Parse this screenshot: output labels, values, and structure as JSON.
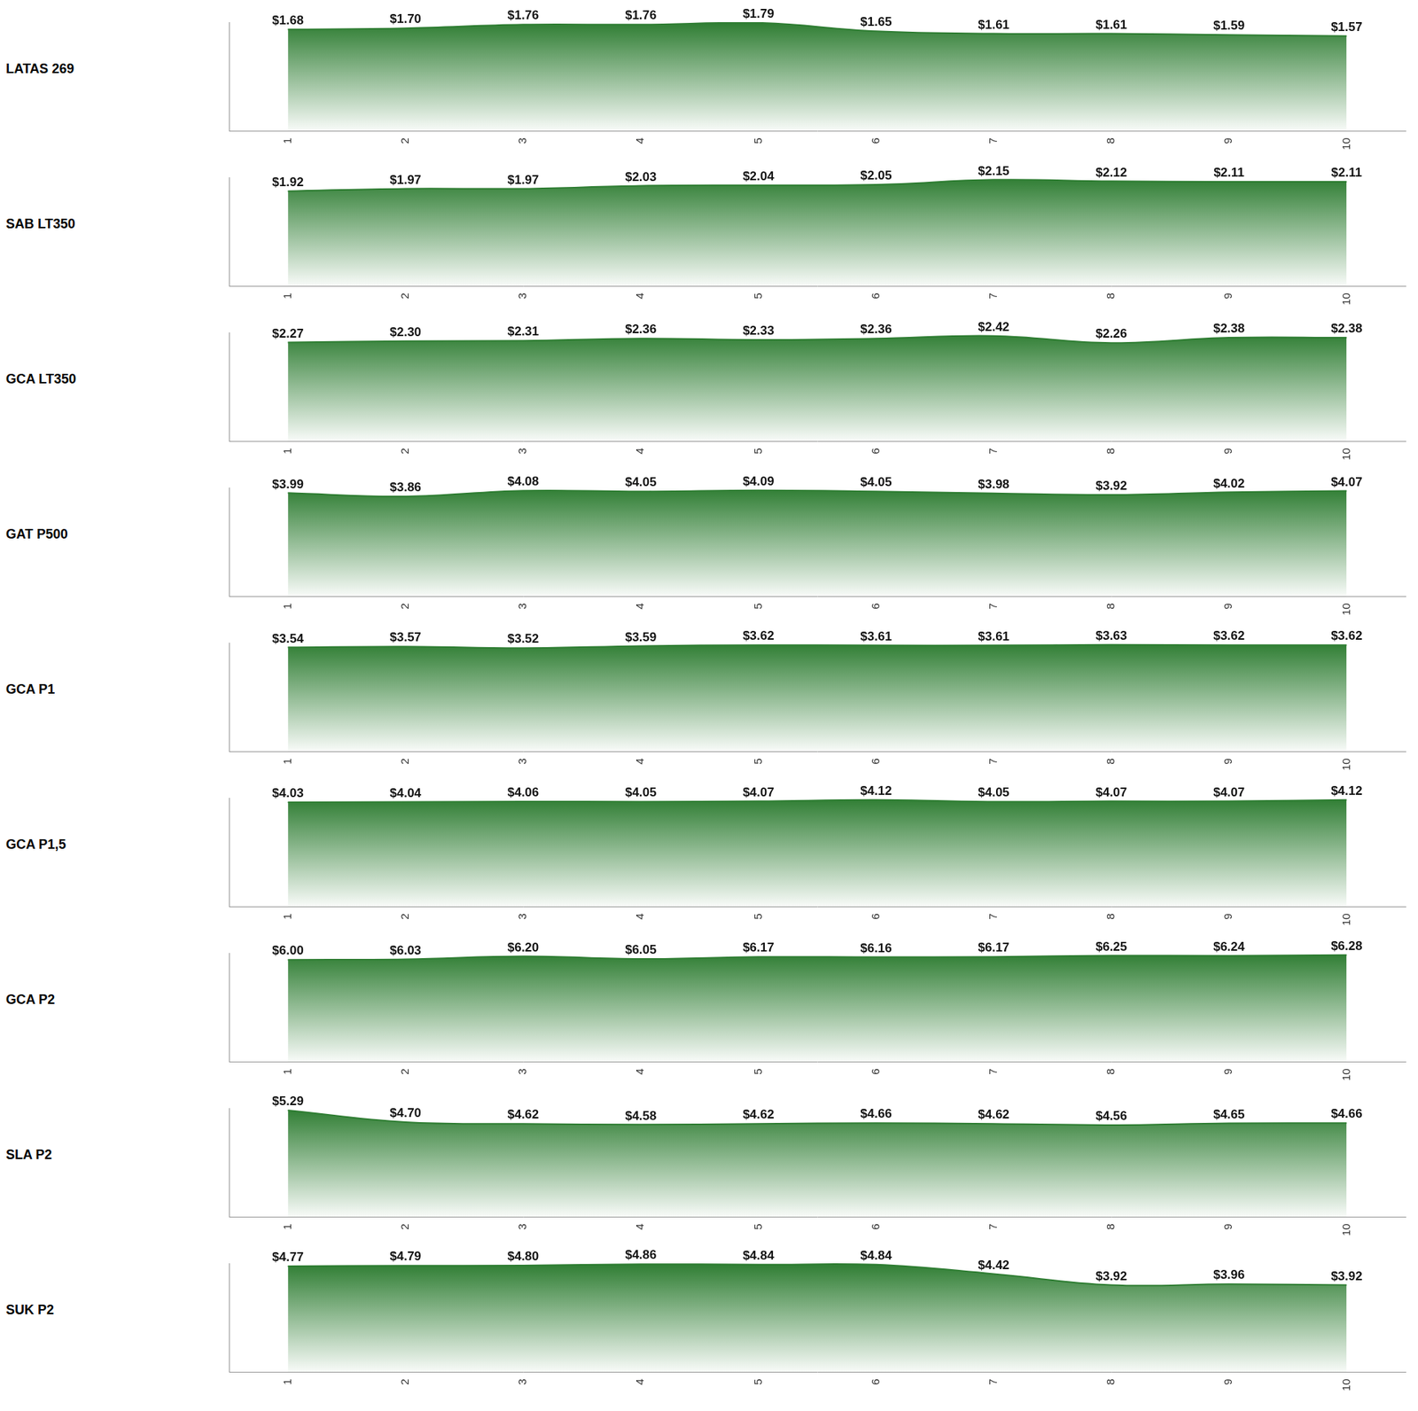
{
  "chart_data": [
    {
      "type": "area",
      "title": "LATAS 269",
      "x": [
        1,
        2,
        3,
        4,
        5,
        6,
        7,
        8,
        9,
        10
      ],
      "xlim": [
        0.5,
        10.5
      ],
      "xticks": [
        1,
        2,
        3,
        4,
        5,
        6,
        7,
        8,
        9,
        10
      ],
      "ylim": [
        0,
        1.8
      ],
      "tick_labels": "x",
      "grid": false,
      "color": "#2e7d32",
      "data_labels": true,
      "values": [
        1.68,
        1.7,
        1.76,
        1.76,
        1.79,
        1.65,
        1.61,
        1.61,
        1.59,
        1.57
      ],
      "value_labels": [
        "$1.68",
        "$1.70",
        "$1.76",
        "$1.76",
        "$1.79",
        "$1.65",
        "$1.61",
        "$1.61",
        "$1.59",
        "$1.57"
      ]
    },
    {
      "type": "area",
      "title": "SAB LT350",
      "x": [
        1,
        2,
        3,
        4,
        5,
        6,
        7,
        8,
        9,
        10
      ],
      "xlim": [
        0.5,
        10.5
      ],
      "xticks": [
        1,
        2,
        3,
        4,
        5,
        6,
        7,
        8,
        9,
        10
      ],
      "ylim": [
        0,
        2.2
      ],
      "tick_labels": "x",
      "grid": false,
      "color": "#2e7d32",
      "data_labels": true,
      "values": [
        1.92,
        1.97,
        1.97,
        2.03,
        2.04,
        2.05,
        2.15,
        2.12,
        2.11,
        2.11
      ],
      "value_labels": [
        "$1.92",
        "$1.97",
        "$1.97",
        "$2.03",
        "$2.04",
        "$2.05",
        "$2.15",
        "$2.12",
        "$2.11",
        "$2.11"
      ]
    },
    {
      "type": "area",
      "title": "GCA LT350",
      "x": [
        1,
        2,
        3,
        4,
        5,
        6,
        7,
        8,
        9,
        10
      ],
      "xlim": [
        0.5,
        10.5
      ],
      "xticks": [
        1,
        2,
        3,
        4,
        5,
        6,
        7,
        8,
        9,
        10
      ],
      "ylim": [
        0,
        2.5
      ],
      "tick_labels": "x",
      "grid": false,
      "color": "#2e7d32",
      "data_labels": true,
      "values": [
        2.27,
        2.3,
        2.31,
        2.36,
        2.33,
        2.36,
        2.42,
        2.26,
        2.38,
        2.38
      ],
      "value_labels": [
        "$2.27",
        "$2.30",
        "$2.31",
        "$2.36",
        "$2.33",
        "$2.36",
        "$2.42",
        "$2.26",
        "$2.38",
        "$2.38"
      ]
    },
    {
      "type": "area",
      "title": "GAT P500",
      "x": [
        1,
        2,
        3,
        4,
        5,
        6,
        7,
        8,
        9,
        10
      ],
      "xlim": [
        0.5,
        10.5
      ],
      "xticks": [
        1,
        2,
        3,
        4,
        5,
        6,
        7,
        8,
        9,
        10
      ],
      "ylim": [
        0,
        4.2
      ],
      "tick_labels": "x",
      "grid": false,
      "color": "#2e7d32",
      "data_labels": true,
      "values": [
        3.99,
        3.86,
        4.08,
        4.05,
        4.09,
        4.05,
        3.98,
        3.92,
        4.02,
        4.07
      ],
      "value_labels": [
        "$3.99",
        "$3.86",
        "$4.08",
        "$4.05",
        "$4.09",
        "$4.05",
        "$3.98",
        "$3.92",
        "$4.02",
        "$4.07"
      ]
    },
    {
      "type": "area",
      "title": "GCA P1",
      "x": [
        1,
        2,
        3,
        4,
        5,
        6,
        7,
        8,
        9,
        10
      ],
      "xlim": [
        0.5,
        10.5
      ],
      "xticks": [
        1,
        2,
        3,
        4,
        5,
        6,
        7,
        8,
        9,
        10
      ],
      "ylim": [
        0,
        3.7
      ],
      "tick_labels": "x",
      "grid": false,
      "color": "#2e7d32",
      "data_labels": true,
      "values": [
        3.54,
        3.57,
        3.52,
        3.59,
        3.62,
        3.61,
        3.61,
        3.63,
        3.62,
        3.62
      ],
      "value_labels": [
        "$3.54",
        "$3.57",
        "$3.52",
        "$3.59",
        "$3.62",
        "$3.61",
        "$3.61",
        "$3.63",
        "$3.62",
        "$3.62"
      ]
    },
    {
      "type": "area",
      "title": "GCA P1,5",
      "x": [
        1,
        2,
        3,
        4,
        5,
        6,
        7,
        8,
        9,
        10
      ],
      "xlim": [
        0.5,
        10.5
      ],
      "xticks": [
        1,
        2,
        3,
        4,
        5,
        6,
        7,
        8,
        9,
        10
      ],
      "ylim": [
        0,
        4.2
      ],
      "tick_labels": "x",
      "grid": false,
      "color": "#2e7d32",
      "data_labels": true,
      "values": [
        4.03,
        4.04,
        4.06,
        4.05,
        4.07,
        4.12,
        4.05,
        4.07,
        4.07,
        4.12
      ],
      "value_labels": [
        "$4.03",
        "$4.04",
        "$4.06",
        "$4.05",
        "$4.07",
        "$4.12",
        "$4.05",
        "$4.07",
        "$4.07",
        "$4.12"
      ]
    },
    {
      "type": "area",
      "title": "GCA P2",
      "x": [
        1,
        2,
        3,
        4,
        5,
        6,
        7,
        8,
        9,
        10
      ],
      "xlim": [
        0.5,
        10.5
      ],
      "xticks": [
        1,
        2,
        3,
        4,
        5,
        6,
        7,
        8,
        9,
        10
      ],
      "ylim": [
        0,
        6.4
      ],
      "tick_labels": "x",
      "grid": false,
      "color": "#2e7d32",
      "data_labels": true,
      "values": [
        6.0,
        6.03,
        6.2,
        6.05,
        6.17,
        6.16,
        6.17,
        6.25,
        6.24,
        6.28
      ],
      "value_labels": [
        "$6.00",
        "$6.03",
        "$6.20",
        "$6.05",
        "$6.17",
        "$6.16",
        "$6.17",
        "$6.25",
        "$6.24",
        "$6.28"
      ]
    },
    {
      "type": "area",
      "title": "SLA P2",
      "x": [
        1,
        2,
        3,
        4,
        5,
        6,
        7,
        8,
        9,
        10
      ],
      "xlim": [
        0.5,
        10.5
      ],
      "xticks": [
        1,
        2,
        3,
        4,
        5,
        6,
        7,
        8,
        9,
        10
      ],
      "ylim": [
        0,
        5.4
      ],
      "tick_labels": "x",
      "grid": false,
      "color": "#2e7d32",
      "data_labels": true,
      "values": [
        5.29,
        4.7,
        4.62,
        4.58,
        4.62,
        4.66,
        4.62,
        4.56,
        4.65,
        4.66
      ],
      "value_labels": [
        "$5.29",
        "$4.70",
        "$4.62",
        "$4.58",
        "$4.62",
        "$4.66",
        "$4.62",
        "$4.56",
        "$4.65",
        "$4.66"
      ]
    },
    {
      "type": "area",
      "title": "SUK P2",
      "x": [
        1,
        2,
        3,
        4,
        5,
        6,
        7,
        8,
        9,
        10
      ],
      "xlim": [
        0.5,
        10.5
      ],
      "xticks": [
        1,
        2,
        3,
        4,
        5,
        6,
        7,
        8,
        9,
        10
      ],
      "ylim": [
        0,
        4.9
      ],
      "tick_labels": "x",
      "grid": false,
      "color": "#2e7d32",
      "data_labels": true,
      "values": [
        4.77,
        4.79,
        4.8,
        4.86,
        4.84,
        4.84,
        4.42,
        3.92,
        3.96,
        3.92
      ],
      "value_labels": [
        "$4.77",
        "$4.79",
        "$4.80",
        "$4.86",
        "$4.84",
        "$4.84",
        "$4.42",
        "$3.92",
        "$3.96",
        "$3.92"
      ]
    }
  ]
}
